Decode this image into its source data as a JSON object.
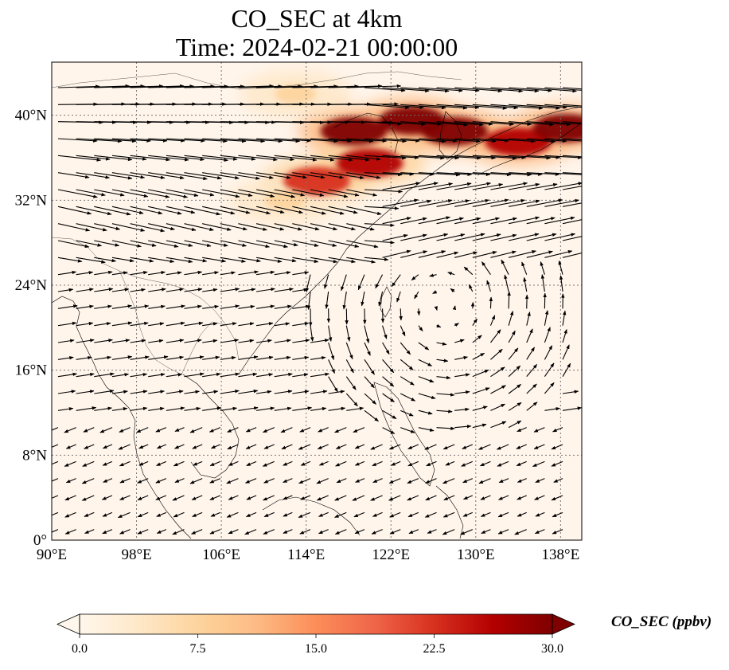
{
  "title": {
    "line1": "CO_SEC at 4km",
    "line2": "Time: 2024-02-21 00:00:00"
  },
  "map": {
    "lon_range": [
      90,
      140
    ],
    "lat_range": [
      0,
      45
    ],
    "lon_ticks": [
      "90°E",
      "98°E",
      "106°E",
      "114°E",
      "122°E",
      "130°E",
      "138°E"
    ],
    "lat_ticks": [
      "0°",
      "8°N",
      "16°N",
      "24°N",
      "32°N",
      "40°N"
    ],
    "lon_tick_values": [
      90,
      98,
      106,
      114,
      122,
      130,
      138
    ],
    "lat_tick_values": [
      0,
      8,
      16,
      24,
      32,
      40
    ],
    "gridlines": true,
    "field_colors": {
      "low": "#fff5eb",
      "mid": "#fdae6b",
      "high": "#7f0000"
    },
    "plumes": [
      {
        "lon": 118.5,
        "lat": 38.5,
        "value": 30
      },
      {
        "lon": 124,
        "lat": 39.5,
        "value": 30
      },
      {
        "lon": 128,
        "lat": 38.5,
        "value": 30
      },
      {
        "lon": 134,
        "lat": 37.5,
        "value": 28
      },
      {
        "lon": 138.5,
        "lat": 38.8,
        "value": 30
      },
      {
        "lon": 115,
        "lat": 33.8,
        "value": 24
      },
      {
        "lon": 120,
        "lat": 35.5,
        "value": 26
      },
      {
        "lon": 112,
        "lat": 32,
        "value": 6
      },
      {
        "lon": 113,
        "lat": 42,
        "value": 8
      }
    ],
    "vortex_center": {
      "lon": 127,
      "lat": 22
    }
  },
  "colorbar": {
    "cmap": "OrRd",
    "min": 0,
    "max": 30,
    "ticks": [
      "0.0",
      "7.5",
      "15.0",
      "22.5",
      "30.0"
    ],
    "tick_values": [
      0,
      7.5,
      15,
      22.5,
      30
    ],
    "extend": "both",
    "label": "CO_SEC (ppbv)"
  }
}
